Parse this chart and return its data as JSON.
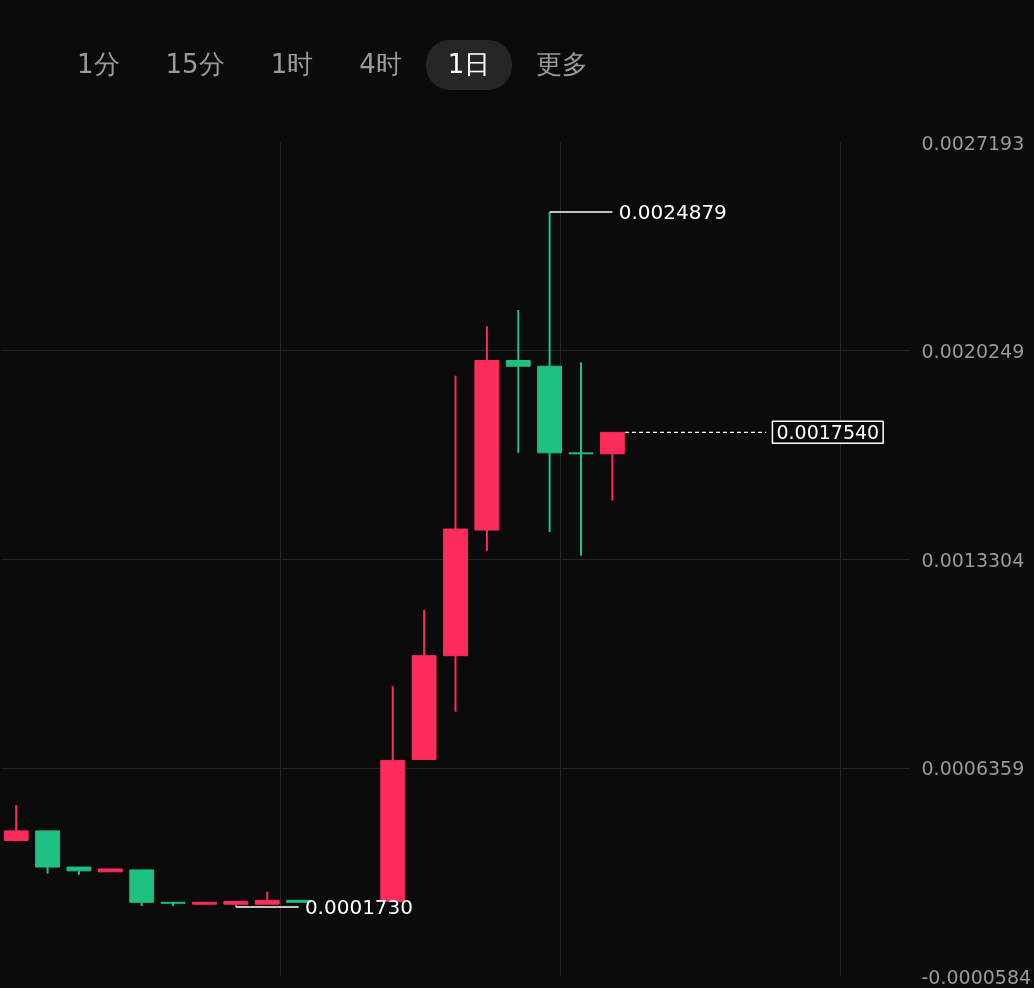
{
  "chart_data": {
    "type": "candlestick",
    "categories": [
      null,
      null,
      null,
      null,
      null,
      null,
      null,
      null,
      null,
      null,
      null,
      null,
      null,
      null,
      null,
      null,
      null,
      null,
      null,
      null,
      null,
      null,
      null,
      null,
      null,
      null,
      null,
      null,
      null
    ],
    "ohlc": [
      [
        0.0003949,
        0.0005122,
        0.0003917,
        0.0004266
      ],
      [
        0.0004266,
        0.0004266,
        0.0002839,
        0.0003061
      ],
      [
        0.0003061,
        0.0003061,
        0.0002807,
        0.0002934
      ],
      [
        0.0002903,
        0.0002998,
        0.0002903,
        0.0002998
      ],
      [
        0.0002966,
        0.0002966,
        0.0001761,
        0.0001888
      ],
      [
        0.0001888,
        0.0001888,
        0.0001761,
        0.0001856
      ],
      [
        0.0001824,
        0.0001888,
        0.0001824,
        0.0001888
      ],
      [
        0.0001824,
        0.0001919,
        0.000173,
        0.0001919
      ],
      [
        0.0001824,
        0.0002237,
        0.0001824,
        0.0001951
      ],
      [
        0.0001951,
        0.0001951,
        0.0001888,
        0.0001888
      ],
      null,
      null,
      [
        0.0001919,
        0.0009086,
        0.0001919,
        0.0006613
      ],
      [
        0.0006645,
        0.0011623,
        0.0006645,
        0.0010101
      ],
      [
        0.0010101,
        0.0019424,
        0.000823,
        0.0014319
      ],
      [
        0.0014287,
        0.0021074,
        0.0013589,
        0.0019932
      ],
      [
        0.0019932,
        0.0021613,
        0.0016856,
        0.0019742
      ],
      [
        0.0019742,
        0.0024879,
        0.0014224,
        0.0016856
      ],
      [
        0.0016856,
        0.0019868,
        0.0013431,
        0.0016824
      ],
      [
        0.0016824,
        0.001754,
        0.001527,
        0.001754
      ],
      null,
      null,
      null,
      null,
      null,
      null,
      null,
      null,
      null
    ],
    "colors": [
      "#fe2c5b",
      "#1ec182",
      "#1ec182",
      "#fe2c5b",
      "#1ec182",
      "#1ec182",
      "#fe2c5b",
      "#fe2c5b",
      "#fe2c5b",
      "#1ec182",
      null,
      null,
      "#fe2c5b",
      "#fe2c5b",
      "#fe2c5b",
      "#fe2c5b",
      "#1ec182",
      "#1ec182",
      "#1ec182",
      "#fe2c5b",
      null,
      null,
      null,
      null,
      null,
      null,
      null,
      null,
      null
    ],
    "ylim": [
      -5.84e-05,
      0.0027193
    ],
    "yticks": [
      {
        "value": 0.0027193,
        "label": "0.0027193"
      },
      {
        "value": 0.0020249,
        "label": "0.0020249"
      },
      {
        "value": 0.0013304,
        "label": "0.0013304"
      },
      {
        "value": 0.0006359,
        "label": "0.0006359"
      },
      {
        "value": -5.84e-05,
        "label": "-0.0000584"
      }
    ],
    "tick_labels": "y",
    "grid": true,
    "ref_lines": [
      {
        "axis": "y",
        "value": 0.001754,
        "label": "0.0017540",
        "color": "#ffffff",
        "line_style": "dashed"
      }
    ],
    "annotations": [
      "1分",
      "15分",
      "1时",
      "4时",
      "1日",
      "更多",
      "0.0024879",
      "0.0001730"
    ]
  }
}
